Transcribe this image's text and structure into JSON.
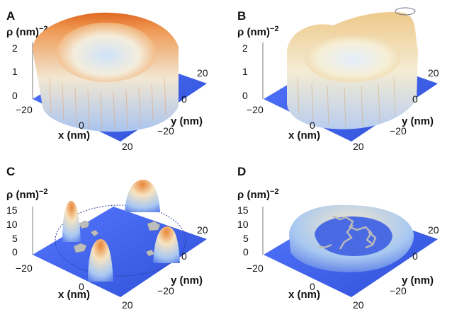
{
  "figure": {
    "panels": [
      {
        "letter": "A",
        "z_label": "ρ (nm)−2",
        "z_ticks": [
          "0",
          "1",
          "2"
        ],
        "x_label": "x (nm)",
        "x_ticks": [
          "−20",
          "0",
          "20"
        ],
        "y_label": "y (nm)",
        "y_ticks": [
          "20",
          "0",
          "−20"
        ]
      },
      {
        "letter": "B",
        "z_label": "ρ (nm)−2",
        "z_ticks": [
          "0",
          "1",
          "2"
        ],
        "x_label": "x (nm)",
        "x_ticks": [
          "−20",
          "0",
          "20"
        ],
        "y_label": "y (nm)",
        "y_ticks": [
          "20",
          "0",
          "−20"
        ]
      },
      {
        "letter": "C",
        "z_label": "ρ (nm)−2",
        "z_ticks": [
          "0",
          "5",
          "10",
          "15"
        ],
        "x_label": "x (nm)",
        "x_ticks": [
          "−20",
          "0",
          "20"
        ],
        "y_label": "y (nm)",
        "y_ticks": [
          "20",
          "0",
          "−20"
        ]
      },
      {
        "letter": "D",
        "z_label": "ρ (nm)−2",
        "z_ticks": [
          "0",
          "5",
          "10",
          "15"
        ],
        "x_label": "x (nm)",
        "x_ticks": [
          "−20",
          "0",
          "20"
        ],
        "y_label": "y (nm)",
        "y_ticks": [
          "20",
          "0",
          "−20"
        ]
      }
    ]
  },
  "colors": {
    "floor": "#3b5ee6",
    "surface_peak": "#e8772a",
    "surface_mid": "#f6ecc0",
    "surface_low": "#9fc3f0",
    "defect": "#bdbdbd"
  }
}
